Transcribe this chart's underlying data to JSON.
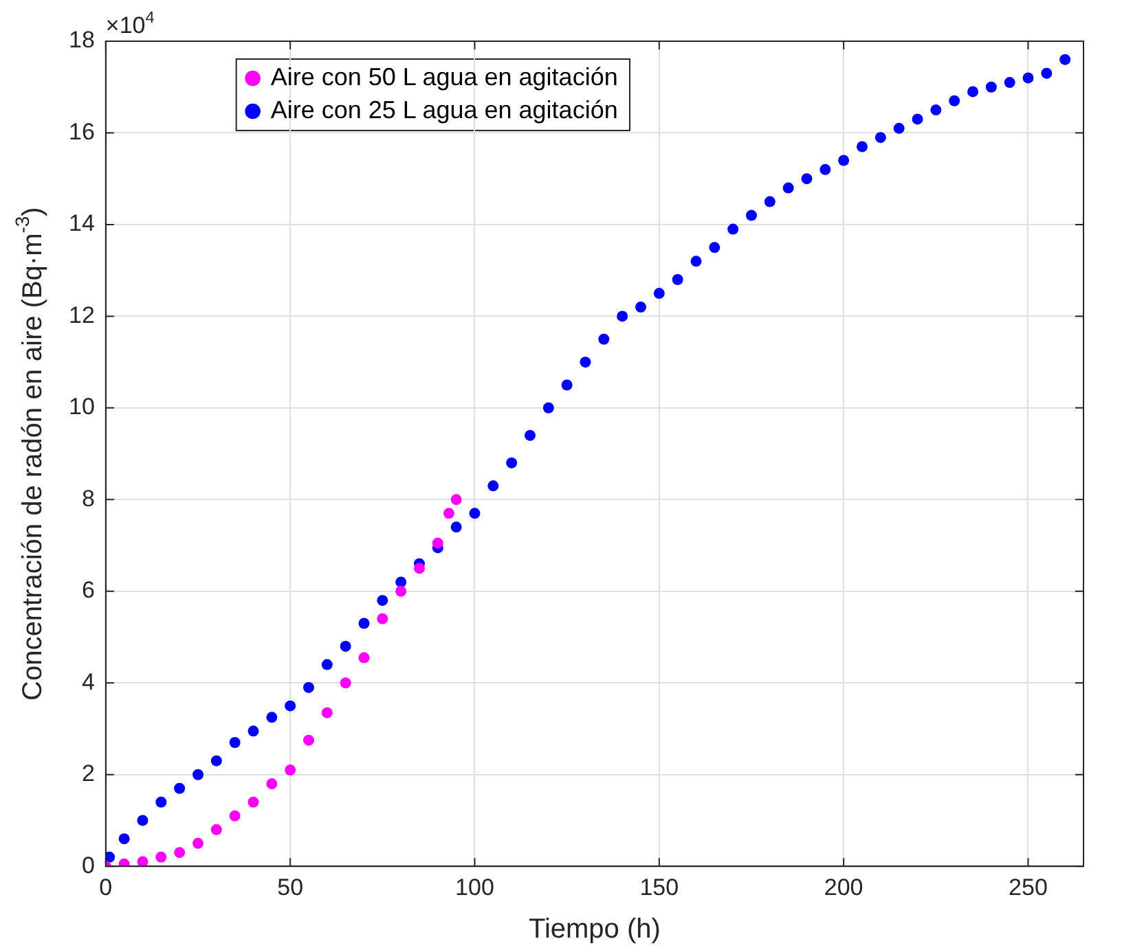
{
  "chart_data": {
    "type": "scatter",
    "xlabel": "Tiempo (h)",
    "ylabel": "Concentración de radón en aire (Bq·m$^{-3}$)",
    "annotations": [
      "×10$^{4}$"
    ],
    "xlim": [
      0,
      265
    ],
    "xticks": [
      0,
      50,
      100,
      150,
      200,
      250
    ],
    "ylim": [
      0,
      18
    ],
    "yticks": [
      0,
      2,
      4,
      6,
      8,
      10,
      12,
      14,
      16,
      18
    ],
    "grid": true,
    "legend": "top left",
    "marker": "circle",
    "series": [
      {
        "name": "Aire con 50 L agua en agitación",
        "color": "#ff00ff",
        "x": [
          0,
          5,
          10,
          15,
          20,
          25,
          30,
          35,
          40,
          45,
          50,
          55,
          60,
          65,
          70,
          75,
          80,
          85,
          90,
          93,
          95
        ],
        "values": [
          0,
          0.05,
          0.1,
          0.2,
          0.3,
          0.5,
          0.8,
          1.1,
          1.4,
          1.8,
          2.1,
          2.75,
          3.35,
          4.0,
          4.55,
          5.4,
          6.0,
          6.5,
          7.05,
          7.7,
          8.0
        ]
      },
      {
        "name": "Aire con 25 L agua en agitación",
        "color": "#0000ff",
        "x": [
          1,
          5,
          10,
          15,
          20,
          25,
          30,
          35,
          40,
          45,
          50,
          55,
          60,
          65,
          70,
          75,
          80,
          85,
          90,
          95,
          100,
          105,
          110,
          115,
          120,
          125,
          130,
          135,
          140,
          145,
          150,
          155,
          160,
          165,
          170,
          175,
          180,
          185,
          190,
          195,
          200,
          205,
          210,
          215,
          220,
          225,
          230,
          235,
          240,
          245,
          250,
          255,
          260
        ],
        "values": [
          0.2,
          0.6,
          1.0,
          1.4,
          1.7,
          2.0,
          2.3,
          2.7,
          2.95,
          3.25,
          3.5,
          3.9,
          4.4,
          4.8,
          5.3,
          5.8,
          6.2,
          6.6,
          6.95,
          7.4,
          7.7,
          8.3,
          8.8,
          9.4,
          10.0,
          10.5,
          11.0,
          11.5,
          12.0,
          12.2,
          12.5,
          12.8,
          13.2,
          13.5,
          13.9,
          14.2,
          14.5,
          14.8,
          15.0,
          15.2,
          15.4,
          15.7,
          15.9,
          16.1,
          16.3,
          16.5,
          16.7,
          16.9,
          17.0,
          17.1,
          17.2,
          17.3,
          17.6
        ]
      }
    ]
  }
}
